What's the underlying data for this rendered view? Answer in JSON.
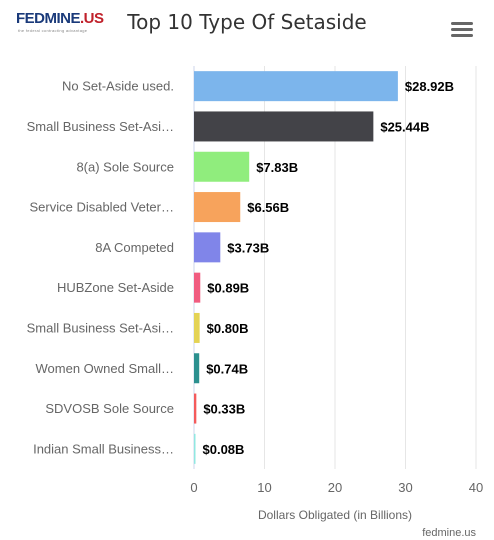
{
  "header": {
    "logo_main": "FEDMINE",
    "logo_suffix": ".US",
    "logo_tagline": "the federal contracting advantage",
    "title": "Top 10 Type Of Setaside",
    "menu_icon": "hamburger-menu-icon"
  },
  "footer": {
    "credit": "fedmine.us"
  },
  "chart_data": {
    "type": "bar",
    "orientation": "horizontal",
    "title": "Top 10 Type Of Setaside",
    "xlabel": "Dollars Obligated (in Billions)",
    "ylabel": "",
    "xlim": [
      0,
      40
    ],
    "ticks": [
      0,
      10,
      20,
      30,
      40
    ],
    "grid": true,
    "categories": [
      "No Set-Aside used.",
      "Small Business Set-Asi…",
      "8(a) Sole Source",
      "Service Disabled Veter…",
      "8A Competed",
      "HUBZone Set-Aside",
      "Small Business Set-Asi…",
      "Women Owned Small…",
      "SDVOSB Sole Source",
      "Indian Small Business…"
    ],
    "values": [
      28.92,
      25.44,
      7.83,
      6.56,
      3.73,
      0.89,
      0.8,
      0.74,
      0.33,
      0.08
    ],
    "data_labels": [
      "$28.92B",
      "$25.44B",
      "$7.83B",
      "$6.56B",
      "$3.73B",
      "$0.89B",
      "$0.80B",
      "$0.74B",
      "$0.33B",
      "$0.08B"
    ],
    "colors": [
      "#7cb5ec",
      "#434348",
      "#90ed7d",
      "#f7a35c",
      "#8085e9",
      "#f15c80",
      "#e4d354",
      "#2b908f",
      "#f45b5b",
      "#91e8e1"
    ]
  }
}
